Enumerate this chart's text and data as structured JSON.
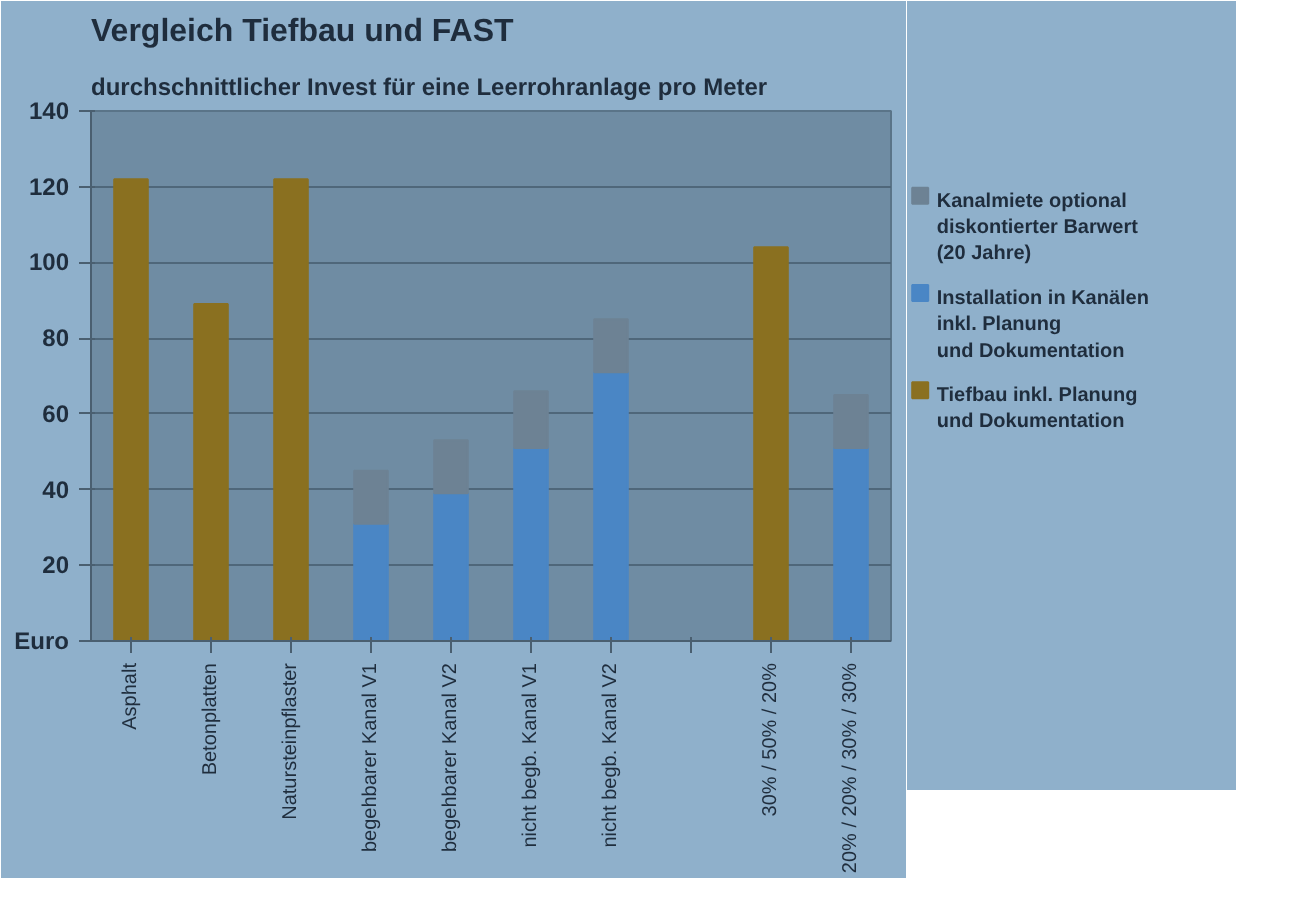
{
  "chart_data": {
    "type": "bar",
    "title": "Vergleich Tiefbau und FAST",
    "subtitle": "durchschnittlicher Invest für eine Leerrohranlage pro Meter",
    "categories": [
      "Asphalt",
      "Betonplatten",
      "Natursteinpflaster",
      "begehbarer Kanal V1",
      "begehbarer Kanal V2",
      "nicht begb. Kanal V1",
      "nicht begb. Kanal V2",
      null,
      "30% / 50% / 20%",
      "20% / 20% / 30% / 30%"
    ],
    "stacked": true,
    "series": [
      {
        "name": "Tiefbau inkl. Planung\nund Dokumentation",
        "color": "#8a7020",
        "values": [
          122,
          89,
          122,
          null,
          null,
          null,
          null,
          null,
          104,
          null
        ]
      },
      {
        "name": "Installation in Kanälen\ninkl. Planung\nund Dokumentation",
        "color": "#4a86c5",
        "values": [
          null,
          null,
          null,
          31,
          39,
          51,
          71,
          null,
          null,
          51
        ]
      },
      {
        "name": "Kanalmiete optional\ndiskontierter Barwert\n(20 Jahre)",
        "color": "#6d8294",
        "values": [
          null,
          null,
          null,
          14,
          14,
          15,
          14,
          null,
          null,
          14
        ]
      }
    ],
    "ylim": [
      0,
      140
    ],
    "yticks": [
      {
        "value": 0,
        "label": "Euro"
      },
      20,
      40,
      60,
      80,
      100,
      120,
      140
    ],
    "grid": "y",
    "legend": "right"
  }
}
